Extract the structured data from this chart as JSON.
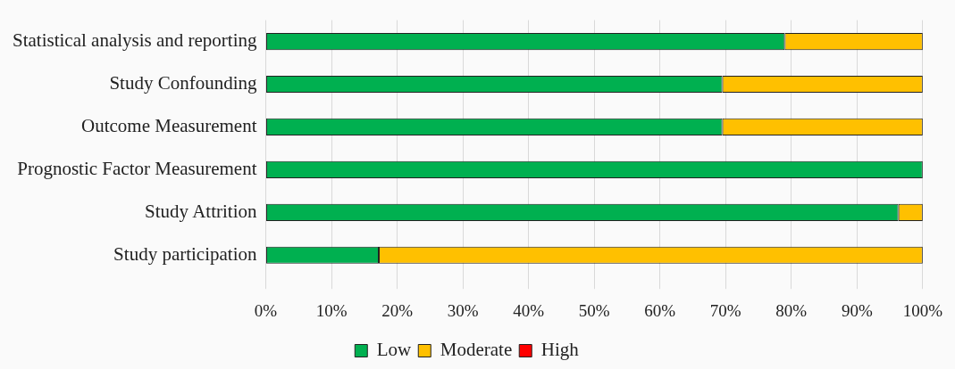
{
  "chart_data": {
    "type": "bar",
    "orientation": "horizontal",
    "stacked": true,
    "categories": [
      "Statistical analysis and reporting",
      "Study Confounding",
      "Outcome Measurement",
      "Prognostic Factor Measurement",
      "Study Attrition",
      "Study participation"
    ],
    "series": [
      {
        "name": "Low",
        "color": "#00b050",
        "values": [
          79,
          69.5,
          69.5,
          100,
          96.3,
          17.2
        ]
      },
      {
        "name": "Moderate",
        "color": "#ffc000",
        "values": [
          21,
          30.5,
          30.5,
          0,
          3.7,
          82.8
        ]
      },
      {
        "name": "High",
        "color": "#ff0000",
        "values": [
          0,
          0,
          0,
          0,
          0,
          0
        ]
      }
    ],
    "xlim": [
      0,
      100
    ],
    "xticks": [
      {
        "value": 0,
        "label": "0%"
      },
      {
        "value": 10,
        "label": "10%"
      },
      {
        "value": 20,
        "label": "20%"
      },
      {
        "value": 30,
        "label": "30%"
      },
      {
        "value": 40,
        "label": "40%"
      },
      {
        "value": 50,
        "label": "50%"
      },
      {
        "value": 60,
        "label": "60%"
      },
      {
        "value": 70,
        "label": "70%"
      },
      {
        "value": 80,
        "label": "80%"
      },
      {
        "value": 90,
        "label": "90%"
      },
      {
        "value": 100,
        "label": "100%"
      }
    ],
    "grid": "x",
    "legend": "bottom"
  }
}
